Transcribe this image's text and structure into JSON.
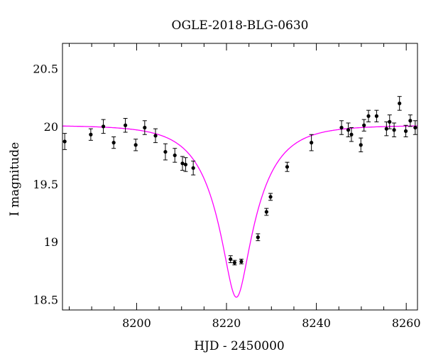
{
  "chart_data": {
    "type": "scatter",
    "title": "OGLE-2018-BLG-0630",
    "xlabel": "HJD - 2450000",
    "ylabel": "I magnitude",
    "xlim": [
      8183.5,
      8262.5
    ],
    "ylim": [
      20.72,
      18.41
    ],
    "y_inverted": true,
    "xticks": [
      8200,
      8220,
      8240,
      8260
    ],
    "xtick_labels": [
      "8200",
      "8220",
      "8240",
      "8260"
    ],
    "yticks": [
      18.5,
      19,
      19.5,
      20,
      20.5
    ],
    "ytick_labels": [
      "18.5",
      "19",
      "19.5",
      "20",
      "20.5"
    ],
    "grid": false,
    "marker_color": "#000000",
    "model_color": "#ff00ff",
    "series": [
      {
        "kind": "points-with-errorbars",
        "x": [
          8184.0,
          8189.8,
          8192.6,
          8194.9,
          8197.5,
          8199.8,
          8201.8,
          8204.2,
          8206.4,
          8208.5,
          8210.2,
          8210.9,
          8212.6,
          8220.9,
          8221.8,
          8223.3,
          8227.0,
          8228.9,
          8229.8,
          8233.5,
          8238.9,
          8245.6,
          8247.1,
          8247.8,
          8249.9,
          8250.6,
          8251.6,
          8253.4,
          8255.6,
          8256.3,
          8257.3,
          8258.5,
          8259.9,
          8260.9,
          8262.0
        ],
        "y": [
          19.87,
          19.93,
          20.0,
          19.86,
          20.01,
          19.84,
          19.99,
          19.92,
          19.78,
          19.75,
          19.68,
          19.67,
          19.64,
          18.85,
          18.82,
          18.83,
          19.04,
          19.26,
          19.39,
          19.65,
          19.86,
          19.99,
          19.97,
          19.93,
          19.84,
          20.01,
          20.09,
          20.09,
          19.98,
          20.04,
          19.97,
          20.2,
          19.96,
          20.05,
          19.99
        ],
        "yerr": [
          0.07,
          0.05,
          0.06,
          0.05,
          0.06,
          0.05,
          0.06,
          0.06,
          0.07,
          0.06,
          0.06,
          0.06,
          0.06,
          0.03,
          0.02,
          0.02,
          0.03,
          0.03,
          0.03,
          0.04,
          0.07,
          0.06,
          0.06,
          0.06,
          0.06,
          0.05,
          0.05,
          0.05,
          0.06,
          0.06,
          0.06,
          0.06,
          0.05,
          0.05,
          0.06
        ]
      },
      {
        "kind": "model-curve",
        "t0": 8222.2,
        "tE": 9.5,
        "u0": 0.26,
        "baseline_mag": 20.01
      }
    ]
  }
}
